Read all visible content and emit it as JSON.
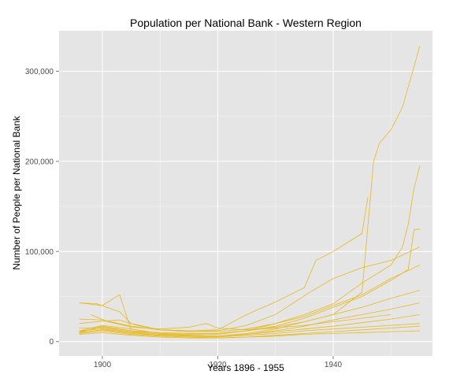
{
  "chart_data": {
    "type": "line",
    "title": "Population per National Bank - Western Region",
    "xlabel": "Years 1896 - 1955",
    "ylabel": "Number of People per National Bank",
    "xlim": [
      1892.5,
      1957.2
    ],
    "ylim": [
      -16000,
      345000
    ],
    "x_ticks": [
      {
        "value": 1900,
        "label": "1900"
      },
      {
        "value": 1920,
        "label": "1920"
      },
      {
        "value": 1940,
        "label": "1940"
      }
    ],
    "y_ticks": [
      {
        "value": 0,
        "label": "0"
      },
      {
        "value": 100000,
        "label": "100,000"
      },
      {
        "value": 200000,
        "label": "200,000"
      },
      {
        "value": 300000,
        "label": "300,000"
      }
    ],
    "grid": true,
    "line_color": "#E6B91E",
    "panel_color": "#E5E5E5",
    "series": [
      {
        "points": [
          [
            1896,
            10000
          ],
          [
            1900,
            17000
          ],
          [
            1905,
            12000
          ],
          [
            1910,
            8000
          ],
          [
            1915,
            7000
          ],
          [
            1920,
            6000
          ],
          [
            1925,
            9000
          ],
          [
            1930,
            14000
          ],
          [
            1935,
            22000
          ],
          [
            1940,
            30000
          ],
          [
            1945,
            55000
          ],
          [
            1947,
            200000
          ],
          [
            1948,
            220000
          ],
          [
            1950,
            235000
          ],
          [
            1952,
            260000
          ],
          [
            1954,
            305000
          ],
          [
            1955,
            328000
          ]
        ]
      },
      {
        "points": [
          [
            1896,
            11000
          ],
          [
            1900,
            16000
          ],
          [
            1905,
            12000
          ],
          [
            1910,
            8000
          ],
          [
            1915,
            8000
          ],
          [
            1920,
            8000
          ],
          [
            1925,
            12000
          ],
          [
            1930,
            20000
          ],
          [
            1935,
            30000
          ],
          [
            1940,
            42000
          ],
          [
            1945,
            65000
          ],
          [
            1950,
            85000
          ],
          [
            1952,
            105000
          ],
          [
            1953,
            130000
          ],
          [
            1954,
            170000
          ],
          [
            1955,
            195000
          ]
        ]
      },
      {
        "points": [
          [
            1896,
            12000
          ],
          [
            1900,
            18000
          ],
          [
            1905,
            14000
          ],
          [
            1910,
            9000
          ],
          [
            1915,
            9000
          ],
          [
            1920,
            9000
          ],
          [
            1925,
            12000
          ],
          [
            1930,
            17000
          ],
          [
            1935,
            26000
          ],
          [
            1940,
            38000
          ],
          [
            1945,
            50000
          ],
          [
            1950,
            68000
          ],
          [
            1953,
            80000
          ],
          [
            1954,
            124000
          ],
          [
            1955,
            125000
          ]
        ]
      },
      {
        "points": [
          [
            1896,
            43000
          ],
          [
            1899,
            42000
          ],
          [
            1903,
            33000
          ],
          [
            1905,
            20000
          ],
          [
            1910,
            13000
          ],
          [
            1915,
            12000
          ],
          [
            1920,
            13000
          ],
          [
            1925,
            30000
          ],
          [
            1930,
            44000
          ],
          [
            1935,
            60000
          ],
          [
            1937,
            90000
          ],
          [
            1940,
            100000
          ],
          [
            1942,
            108000
          ],
          [
            1945,
            120000
          ],
          [
            1946,
            160000
          ]
        ]
      },
      {
        "points": [
          [
            1896,
            25000
          ],
          [
            1900,
            24000
          ],
          [
            1905,
            17000
          ],
          [
            1910,
            13000
          ],
          [
            1915,
            12000
          ],
          [
            1920,
            12000
          ],
          [
            1925,
            18000
          ],
          [
            1930,
            30000
          ],
          [
            1936,
            55000
          ],
          [
            1940,
            70000
          ],
          [
            1945,
            82000
          ],
          [
            1950,
            90000
          ],
          [
            1955,
            105000
          ]
        ]
      },
      {
        "points": [
          [
            1896,
            20000
          ],
          [
            1899,
            22000
          ],
          [
            1903,
            24000
          ],
          [
            1906,
            18000
          ],
          [
            1910,
            13000
          ],
          [
            1915,
            11000
          ],
          [
            1920,
            11000
          ],
          [
            1925,
            14000
          ],
          [
            1930,
            20000
          ],
          [
            1935,
            28000
          ],
          [
            1940,
            40000
          ],
          [
            1945,
            52000
          ],
          [
            1950,
            70000
          ],
          [
            1955,
            85000
          ]
        ]
      },
      {
        "points": [
          [
            1896,
            43000
          ],
          [
            1900,
            40000
          ],
          [
            1903,
            52000
          ],
          [
            1905,
            12000
          ],
          [
            1910,
            10000
          ],
          [
            1915,
            9000
          ],
          [
            1920,
            9000
          ],
          [
            1925,
            12000
          ],
          [
            1930,
            16000
          ],
          [
            1935,
            22000
          ],
          [
            1940,
            30000
          ],
          [
            1945,
            38000
          ],
          [
            1950,
            48000
          ],
          [
            1955,
            57000
          ]
        ]
      },
      {
        "points": [
          [
            1896,
            15000
          ],
          [
            1900,
            15000
          ],
          [
            1905,
            11000
          ],
          [
            1910,
            8000
          ],
          [
            1915,
            7000
          ],
          [
            1920,
            6000
          ],
          [
            1925,
            8000
          ],
          [
            1930,
            12000
          ],
          [
            1935,
            17000
          ],
          [
            1940,
            24000
          ],
          [
            1945,
            30000
          ],
          [
            1950,
            36000
          ],
          [
            1955,
            43000
          ]
        ]
      },
      {
        "points": [
          [
            1896,
            12000
          ],
          [
            1900,
            14000
          ],
          [
            1905,
            10000
          ],
          [
            1910,
            7000
          ],
          [
            1915,
            6000
          ],
          [
            1920,
            6000
          ],
          [
            1925,
            8000
          ],
          [
            1930,
            11000
          ],
          [
            1935,
            14000
          ],
          [
            1940,
            17000
          ],
          [
            1945,
            21000
          ],
          [
            1950,
            25000
          ],
          [
            1955,
            30000
          ]
        ]
      },
      {
        "points": [
          [
            1896,
            10000
          ],
          [
            1900,
            13000
          ],
          [
            1905,
            9000
          ],
          [
            1910,
            7000
          ],
          [
            1915,
            6000
          ],
          [
            1920,
            5000
          ],
          [
            1925,
            7000
          ],
          [
            1930,
            9000
          ],
          [
            1935,
            12000
          ],
          [
            1940,
            14000
          ],
          [
            1945,
            16000
          ],
          [
            1950,
            18000
          ],
          [
            1955,
            20000
          ]
        ]
      },
      {
        "points": [
          [
            1896,
            9000
          ],
          [
            1900,
            12000
          ],
          [
            1905,
            8000
          ],
          [
            1910,
            6000
          ],
          [
            1915,
            5000
          ],
          [
            1920,
            4000
          ],
          [
            1925,
            5000
          ],
          [
            1930,
            7000
          ],
          [
            1935,
            9000
          ],
          [
            1940,
            11000
          ],
          [
            1945,
            13000
          ],
          [
            1950,
            15000
          ],
          [
            1955,
            17000
          ]
        ]
      },
      {
        "points": [
          [
            1896,
            8000
          ],
          [
            1900,
            10000
          ],
          [
            1905,
            7000
          ],
          [
            1910,
            5000
          ],
          [
            1915,
            4000
          ],
          [
            1920,
            4000
          ],
          [
            1925,
            5000
          ],
          [
            1930,
            6000
          ],
          [
            1935,
            8000
          ],
          [
            1940,
            9000
          ],
          [
            1945,
            10000
          ],
          [
            1950,
            11000
          ],
          [
            1955,
            12000
          ]
        ]
      },
      {
        "points": [
          [
            1898,
            30000
          ],
          [
            1901,
            22000
          ],
          [
            1905,
            16000
          ],
          [
            1910,
            14000
          ],
          [
            1915,
            16000
          ],
          [
            1918,
            20000
          ],
          [
            1920,
            15000
          ],
          [
            1925,
            13000
          ],
          [
            1930,
            15000
          ],
          [
            1935,
            18000
          ],
          [
            1940,
            22000
          ],
          [
            1945,
            26000
          ],
          [
            1950,
            30000
          ]
        ]
      }
    ]
  }
}
